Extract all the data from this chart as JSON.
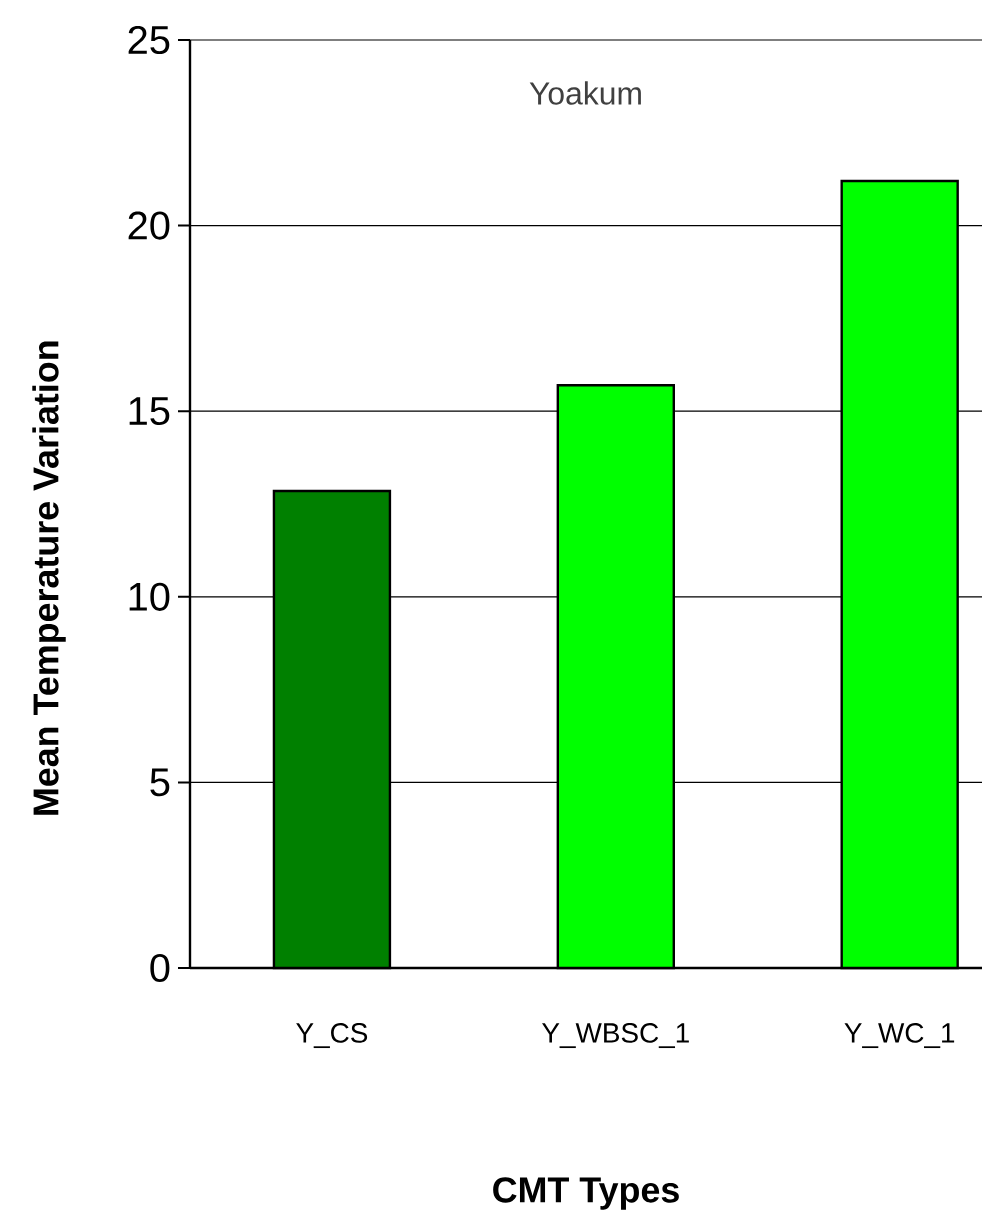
{
  "chart_data": {
    "type": "bar",
    "title": "Yoakum",
    "xlabel": "CMT Types",
    "ylabel": "Mean Temperature Variation",
    "categories": [
      "Y_CS",
      "Y_WBSC_1",
      "Y_WC_1"
    ],
    "values": [
      12.85,
      15.7,
      21.2
    ],
    "colors": [
      "#008000",
      "#00ff00",
      "#00ff00"
    ],
    "ylim": [
      0,
      25
    ],
    "yticks": [
      0,
      5,
      10,
      15,
      20,
      25
    ],
    "grid": "y"
  }
}
